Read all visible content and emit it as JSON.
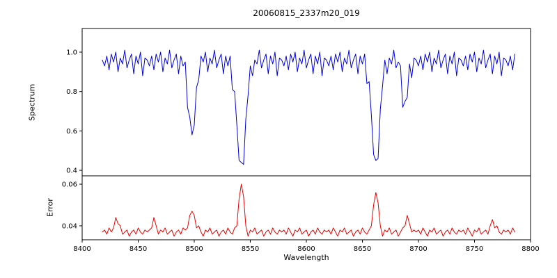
{
  "figure": {
    "title": "20060815_2337m20_019",
    "xlabel": "Wavelength",
    "ylabel_top": "Spectrum",
    "ylabel_bottom": "Error",
    "background_color": "#ffffff",
    "frame_color": "#000000"
  },
  "chart_data": [
    {
      "type": "line",
      "name": "spectrum",
      "title": "20060815_2337m20_019",
      "ylabel": "Spectrum",
      "color": "#0000dd",
      "grid": false,
      "legend": "none",
      "xlim": [
        8400,
        8800
      ],
      "ylim": [
        0.372,
        1.12
      ],
      "yticks": [
        0.4,
        0.6,
        0.8,
        1.0
      ],
      "ytick_labels": [
        "0.4",
        "0.6",
        "0.8",
        "1.0"
      ],
      "x_start": 8418,
      "x_step": 2,
      "absorption_line_centers": [
        8498,
        8542,
        8662,
        8688
      ],
      "values": [
        0.96,
        0.93,
        0.98,
        0.91,
        0.99,
        0.95,
        1.0,
        0.9,
        0.97,
        0.94,
        1.01,
        0.92,
        0.96,
        0.99,
        0.89,
        0.98,
        0.94,
        1.0,
        0.88,
        0.97,
        0.96,
        0.93,
        0.98,
        0.91,
        0.99,
        0.95,
        1.0,
        0.9,
        0.97,
        0.94,
        1.01,
        0.92,
        0.96,
        0.99,
        0.89,
        0.98,
        0.93,
        0.95,
        0.72,
        0.67,
        0.58,
        0.63,
        0.82,
        0.86,
        0.98,
        0.95,
        1.0,
        0.9,
        0.97,
        0.94,
        1.01,
        0.92,
        0.96,
        0.99,
        0.89,
        0.98,
        0.93,
        0.98,
        0.81,
        0.8,
        0.63,
        0.45,
        0.44,
        0.43,
        0.66,
        0.78,
        0.93,
        0.88,
        0.96,
        0.94,
        1.01,
        0.92,
        0.96,
        0.99,
        0.89,
        0.98,
        0.94,
        1.0,
        0.88,
        0.97,
        0.96,
        0.93,
        0.98,
        0.91,
        0.99,
        0.95,
        1.0,
        0.9,
        0.97,
        0.94,
        1.01,
        0.92,
        0.96,
        0.99,
        0.89,
        0.98,
        0.94,
        1.0,
        0.88,
        0.97,
        0.96,
        0.93,
        0.98,
        0.91,
        0.99,
        0.95,
        1.0,
        0.9,
        0.97,
        0.94,
        1.01,
        0.92,
        0.96,
        0.99,
        0.89,
        0.98,
        0.94,
        0.99,
        0.84,
        0.85,
        0.68,
        0.48,
        0.45,
        0.46,
        0.71,
        0.83,
        0.96,
        0.89,
        0.97,
        0.94,
        1.01,
        0.92,
        0.95,
        0.93,
        0.72,
        0.75,
        0.77,
        0.94,
        0.87,
        0.97,
        0.96,
        0.93,
        0.98,
        0.91,
        0.99,
        0.95,
        1.0,
        0.9,
        0.97,
        0.94,
        1.01,
        0.92,
        0.96,
        0.99,
        0.89,
        0.98,
        0.94,
        1.0,
        0.88,
        0.97,
        0.96,
        0.93,
        0.98,
        0.91,
        0.99,
        0.95,
        1.0,
        0.9,
        0.97,
        0.94,
        1.01,
        0.92,
        0.96,
        0.99,
        0.89,
        0.98,
        0.94,
        1.0,
        0.88,
        0.97,
        0.96,
        0.93,
        0.98,
        0.91,
        0.99
      ]
    },
    {
      "type": "line",
      "name": "error",
      "ylabel": "Error",
      "xlabel": "Wavelength",
      "color": "#ee0000",
      "grid": false,
      "legend": "none",
      "xlim": [
        8400,
        8800
      ],
      "ylim": [
        0.0333,
        0.064
      ],
      "yticks": [
        0.04,
        0.06
      ],
      "ytick_labels": [
        "0.04",
        "0.06"
      ],
      "xticks": [
        8400,
        8450,
        8500,
        8550,
        8600,
        8650,
        8700,
        8750,
        8800
      ],
      "xtick_labels": [
        "8400",
        "8450",
        "8500",
        "8550",
        "8600",
        "8650",
        "8700",
        "8750",
        "8800"
      ],
      "x_start": 8418,
      "x_step": 2,
      "peak_centers": [
        8430,
        8464,
        8498,
        8542,
        8662,
        8690,
        8766
      ],
      "values": [
        0.037,
        0.038,
        0.036,
        0.039,
        0.037,
        0.039,
        0.044,
        0.041,
        0.04,
        0.036,
        0.037,
        0.038,
        0.035,
        0.037,
        0.038,
        0.036,
        0.039,
        0.037,
        0.036,
        0.038,
        0.037,
        0.038,
        0.039,
        0.044,
        0.04,
        0.036,
        0.038,
        0.037,
        0.039,
        0.036,
        0.037,
        0.038,
        0.035,
        0.037,
        0.038,
        0.036,
        0.039,
        0.038,
        0.039,
        0.045,
        0.047,
        0.045,
        0.039,
        0.04,
        0.037,
        0.035,
        0.038,
        0.037,
        0.039,
        0.036,
        0.037,
        0.038,
        0.035,
        0.037,
        0.038,
        0.036,
        0.039,
        0.037,
        0.036,
        0.039,
        0.04,
        0.053,
        0.06,
        0.054,
        0.04,
        0.035,
        0.038,
        0.037,
        0.039,
        0.036,
        0.037,
        0.038,
        0.035,
        0.037,
        0.038,
        0.036,
        0.039,
        0.037,
        0.036,
        0.038,
        0.037,
        0.038,
        0.036,
        0.039,
        0.037,
        0.035,
        0.038,
        0.037,
        0.039,
        0.036,
        0.037,
        0.038,
        0.035,
        0.037,
        0.038,
        0.036,
        0.039,
        0.037,
        0.036,
        0.038,
        0.037,
        0.038,
        0.036,
        0.039,
        0.037,
        0.035,
        0.038,
        0.037,
        0.039,
        0.036,
        0.037,
        0.038,
        0.035,
        0.037,
        0.038,
        0.036,
        0.039,
        0.037,
        0.036,
        0.038,
        0.04,
        0.05,
        0.056,
        0.051,
        0.04,
        0.035,
        0.038,
        0.037,
        0.039,
        0.036,
        0.037,
        0.038,
        0.035,
        0.037,
        0.039,
        0.04,
        0.045,
        0.041,
        0.037,
        0.038,
        0.037,
        0.038,
        0.036,
        0.039,
        0.037,
        0.035,
        0.038,
        0.037,
        0.039,
        0.036,
        0.037,
        0.038,
        0.035,
        0.037,
        0.038,
        0.036,
        0.039,
        0.037,
        0.036,
        0.038,
        0.037,
        0.038,
        0.036,
        0.039,
        0.037,
        0.035,
        0.038,
        0.037,
        0.039,
        0.036,
        0.037,
        0.038,
        0.036,
        0.04,
        0.043,
        0.039,
        0.04,
        0.037,
        0.036,
        0.038,
        0.037,
        0.038,
        0.036,
        0.039,
        0.037
      ]
    }
  ]
}
